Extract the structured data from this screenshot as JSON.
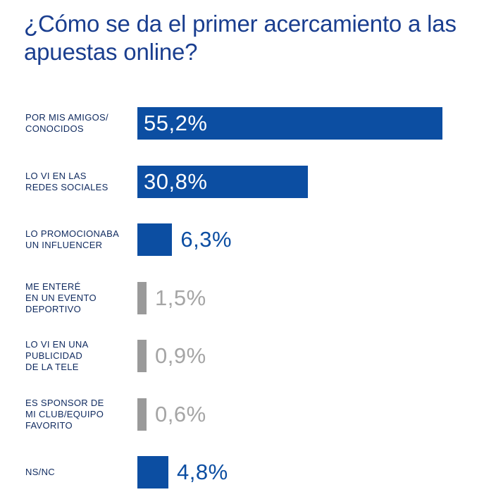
{
  "chart_data": {
    "type": "bar",
    "orientation": "horizontal",
    "title": "¿Cómo se da el primer acercamiento a las apuestas online?",
    "categories": [
      "POR MIS AMIGOS/\nCONOCIDOS",
      "LO VI EN LAS\nREDES SOCIALES",
      "LO PROMOCIONABA\nUN INFLUENCER",
      "ME ENTERÉ\nEN UN EVENTO\nDEPORTIVO",
      "LO VI EN UNA\nPUBLICIDAD\nDE LA TELE",
      "ES SPONSOR DE\nMI CLUB/EQUIPO\nFAVORITO",
      "NS/NC"
    ],
    "values": [
      55.2,
      30.8,
      6.3,
      1.5,
      0.9,
      0.6,
      4.8
    ],
    "value_labels": [
      "55,2%",
      "30,8%",
      "6,3%",
      "1,5%",
      "0,9%",
      "0,6%",
      "4,8%"
    ],
    "bar_colors": [
      "#0c4ea2",
      "#0c4ea2",
      "#0c4ea2",
      "#9a9a9a",
      "#9a9a9a",
      "#9a9a9a",
      "#0c4ea2"
    ],
    "label_colors": [
      "#ffffff",
      "#ffffff",
      "#0c4ea2",
      "#a5a5a5",
      "#a5a5a5",
      "#a5a5a5",
      "#0c4ea2"
    ],
    "value_inside_bar": [
      true,
      true,
      false,
      false,
      false,
      false,
      false
    ],
    "xlim": [
      0,
      55.2
    ],
    "legend": "none",
    "grid": false
  }
}
